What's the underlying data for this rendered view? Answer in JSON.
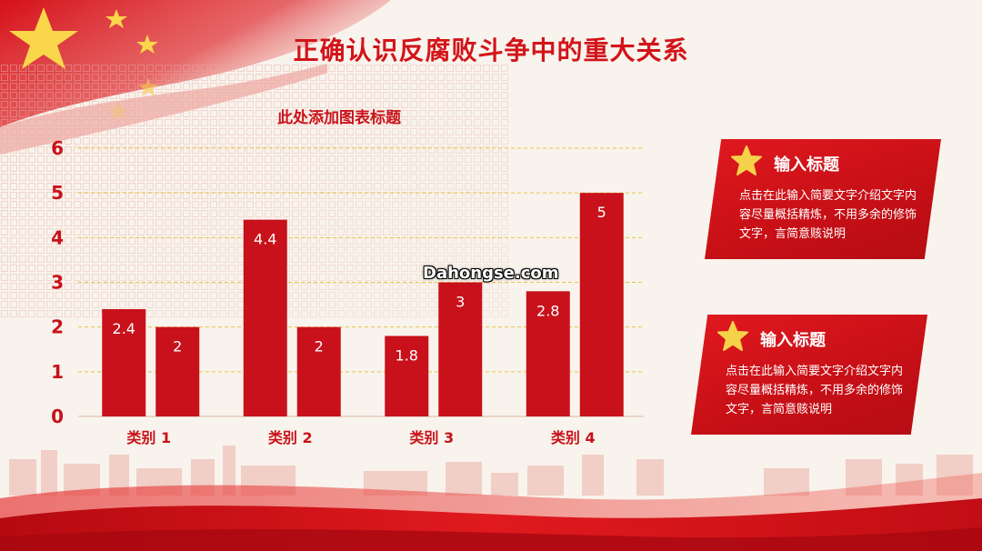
{
  "slide": {
    "title": "正确认识反腐败斗争中的重大关系",
    "watermark": "Dahongse.com"
  },
  "colors": {
    "primary_red": "#c8111a",
    "gridline": "#e8c54a",
    "axis_label": "#c8111a",
    "star": "#f6d24a"
  },
  "chart_data": {
    "type": "bar",
    "title": "此处添加图表标题",
    "categories": [
      "类别 1",
      "类别 2",
      "类别 3",
      "类别 4"
    ],
    "series": [
      {
        "values": [
          2.4,
          4.4,
          1.8,
          2.8
        ]
      },
      {
        "values": [
          2,
          2,
          3,
          5
        ]
      }
    ],
    "ylim": [
      0,
      6
    ],
    "yticks": [
      0,
      1,
      2,
      3,
      4,
      5,
      6
    ],
    "grid": true,
    "legend": "none",
    "data_labels": true
  },
  "cards": [
    {
      "title": "输入标题",
      "body": "点击在此输入简要文字介绍文字内容尽量概括精炼，不用多余的修饰文字，言简意赅说明"
    },
    {
      "title": "输入标题",
      "body": "点击在此输入简要文字介绍文字内容尽量概括精炼，不用多余的修饰文字，言简意赅说明"
    }
  ]
}
